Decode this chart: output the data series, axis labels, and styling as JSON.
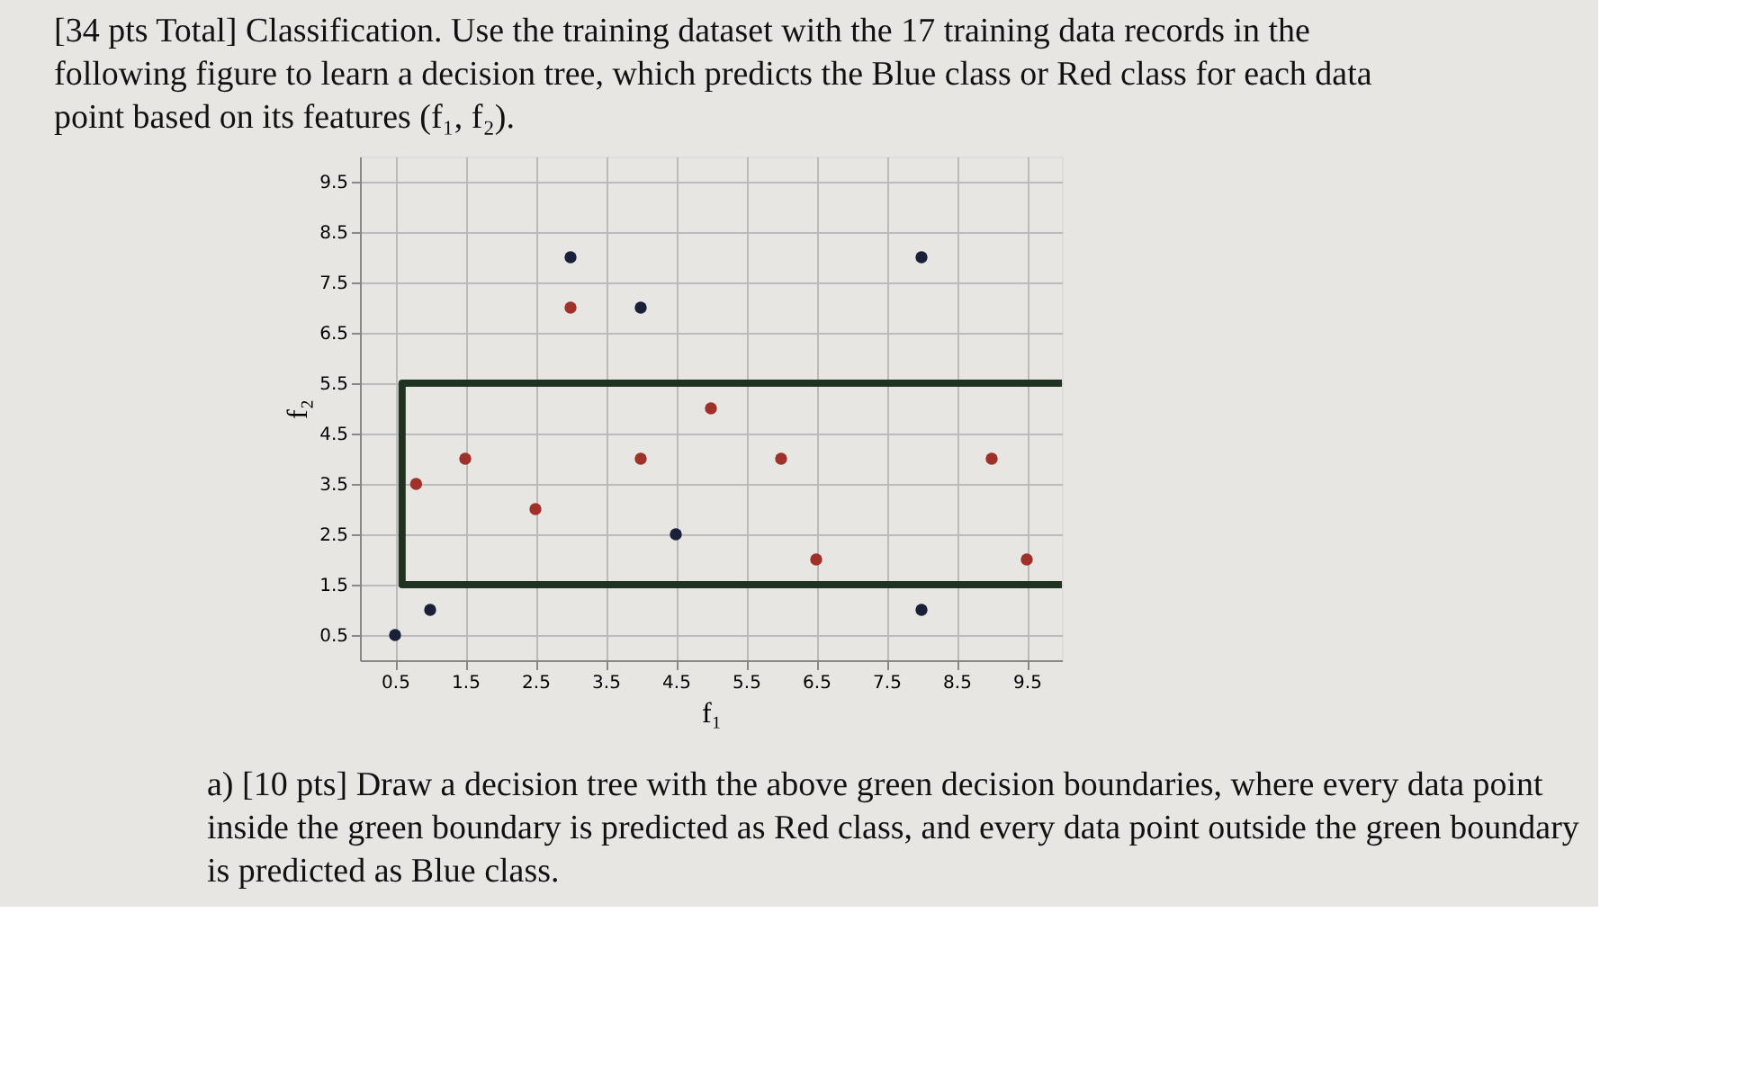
{
  "chart_data": {
    "type": "scatter",
    "title": "[34 pts Total] Classification. Use the training dataset with the 17 training data records in the following figure to learn a decision tree, which predicts the Blue class or Red class for each data point based on its features (f₁, f₂).",
    "xlabel": "f₁",
    "ylabel": "f₂",
    "xlim": [
      0,
      10
    ],
    "ylim": [
      0,
      10
    ],
    "xticks": [
      0.5,
      1.5,
      2.5,
      3.5,
      4.5,
      5.5,
      6.5,
      7.5,
      8.5,
      9.5
    ],
    "yticks": [
      0.5,
      1.5,
      2.5,
      3.5,
      4.5,
      5.5,
      6.5,
      7.5,
      8.5,
      9.5
    ],
    "grid": true,
    "marker": "circle",
    "series": [
      {
        "color": "#1a1f3a",
        "x": [
          0.5,
          1,
          3,
          4,
          4.5,
          8,
          8
        ],
        "values": [
          0.5,
          1,
          8,
          7,
          2.5,
          8,
          1
        ]
      },
      {
        "color": "#a0302a",
        "x": [
          0.8,
          1.5,
          2.5,
          3,
          4,
          5,
          6,
          6.5,
          9,
          9.5
        ],
        "values": [
          3.5,
          4,
          3,
          7,
          4,
          5,
          4,
          2,
          4,
          2
        ]
      },
      {
        "type": "line",
        "color": "#1f3320",
        "line_style": "solid",
        "marker": "none",
        "x": [
          10,
          0.6,
          0.6,
          10
        ],
        "values": [
          5.5,
          5.5,
          1.5,
          1.5
        ]
      }
    ],
    "annotations": [
      "a) [10 pts] Draw a decision tree with the above green decision boundaries, where every data point inside the green boundary is predicted as Red class, and every data point outside the green boundary is predicted as Blue class."
    ]
  }
}
